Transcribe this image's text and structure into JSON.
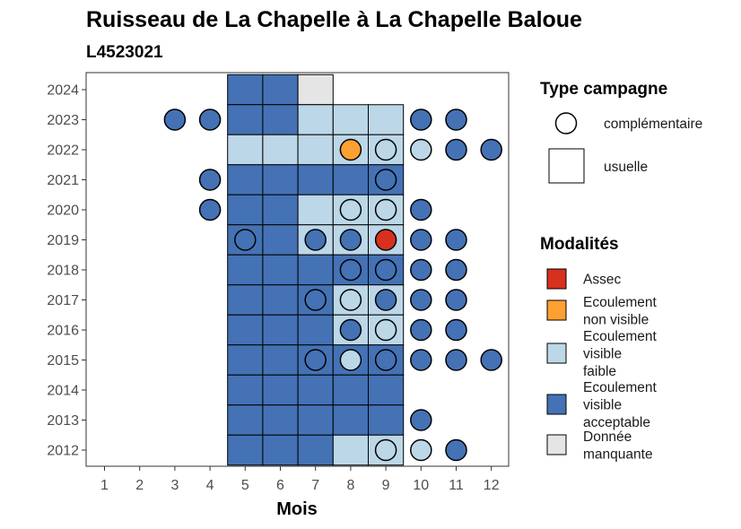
{
  "chart_data": {
    "type": "heatmap",
    "title": "Ruisseau de La Chapelle à La Chapelle Baloue",
    "subtitle": "L4523021",
    "xlabel": "Mois",
    "ylabel": "",
    "x_categories": [
      "1",
      "2",
      "3",
      "4",
      "5",
      "6",
      "7",
      "8",
      "9",
      "10",
      "11",
      "12"
    ],
    "y_categories": [
      "2012",
      "2013",
      "2014",
      "2015",
      "2016",
      "2017",
      "2018",
      "2019",
      "2020",
      "2021",
      "2022",
      "2023",
      "2024"
    ],
    "colors": {
      "Assec": "#d7301f",
      "Ecoulement non visible": "#fda032",
      "Ecoulement visible faible": "#bcd7e8",
      "Ecoulement visible acceptable": "#4472b5",
      "Donnée manquante": "#e5e5e5"
    },
    "usuelle": [
      {
        "year": "2024",
        "month": 5,
        "mod": "Ecoulement visible acceptable"
      },
      {
        "year": "2024",
        "month": 6,
        "mod": "Ecoulement visible acceptable"
      },
      {
        "year": "2024",
        "month": 7,
        "mod": "Donnée manquante"
      },
      {
        "year": "2023",
        "month": 5,
        "mod": "Ecoulement visible acceptable"
      },
      {
        "year": "2023",
        "month": 6,
        "mod": "Ecoulement visible acceptable"
      },
      {
        "year": "2023",
        "month": 7,
        "mod": "Ecoulement visible faible"
      },
      {
        "year": "2023",
        "month": 8,
        "mod": "Ecoulement visible faible"
      },
      {
        "year": "2023",
        "month": 9,
        "mod": "Ecoulement visible faible"
      },
      {
        "year": "2022",
        "month": 5,
        "mod": "Ecoulement visible faible"
      },
      {
        "year": "2022",
        "month": 6,
        "mod": "Ecoulement visible faible"
      },
      {
        "year": "2022",
        "month": 7,
        "mod": "Ecoulement visible faible"
      },
      {
        "year": "2022",
        "month": 8,
        "mod": "Ecoulement visible faible"
      },
      {
        "year": "2022",
        "month": 9,
        "mod": "Ecoulement visible faible"
      },
      {
        "year": "2021",
        "month": 5,
        "mod": "Ecoulement visible acceptable"
      },
      {
        "year": "2021",
        "month": 6,
        "mod": "Ecoulement visible acceptable"
      },
      {
        "year": "2021",
        "month": 7,
        "mod": "Ecoulement visible acceptable"
      },
      {
        "year": "2021",
        "month": 8,
        "mod": "Ecoulement visible acceptable"
      },
      {
        "year": "2021",
        "month": 9,
        "mod": "Ecoulement visible acceptable"
      },
      {
        "year": "2020",
        "month": 5,
        "mod": "Ecoulement visible acceptable"
      },
      {
        "year": "2020",
        "month": 6,
        "mod": "Ecoulement visible acceptable"
      },
      {
        "year": "2020",
        "month": 7,
        "mod": "Ecoulement visible faible"
      },
      {
        "year": "2020",
        "month": 8,
        "mod": "Ecoulement visible faible"
      },
      {
        "year": "2020",
        "month": 9,
        "mod": "Ecoulement visible faible"
      },
      {
        "year": "2019",
        "month": 5,
        "mod": "Ecoulement visible acceptable"
      },
      {
        "year": "2019",
        "month": 6,
        "mod": "Ecoulement visible acceptable"
      },
      {
        "year": "2019",
        "month": 7,
        "mod": "Ecoulement visible faible"
      },
      {
        "year": "2019",
        "month": 8,
        "mod": "Ecoulement visible faible"
      },
      {
        "year": "2019",
        "month": 9,
        "mod": "Ecoulement visible faible"
      },
      {
        "year": "2018",
        "month": 5,
        "mod": "Ecoulement visible acceptable"
      },
      {
        "year": "2018",
        "month": 6,
        "mod": "Ecoulement visible acceptable"
      },
      {
        "year": "2018",
        "month": 7,
        "mod": "Ecoulement visible acceptable"
      },
      {
        "year": "2018",
        "month": 8,
        "mod": "Ecoulement visible acceptable"
      },
      {
        "year": "2018",
        "month": 9,
        "mod": "Ecoulement visible acceptable"
      },
      {
        "year": "2017",
        "month": 5,
        "mod": "Ecoulement visible acceptable"
      },
      {
        "year": "2017",
        "month": 6,
        "mod": "Ecoulement visible acceptable"
      },
      {
        "year": "2017",
        "month": 7,
        "mod": "Ecoulement visible acceptable"
      },
      {
        "year": "2017",
        "month": 8,
        "mod": "Ecoulement visible faible"
      },
      {
        "year": "2017",
        "month": 9,
        "mod": "Ecoulement visible faible"
      },
      {
        "year": "2016",
        "month": 5,
        "mod": "Ecoulement visible acceptable"
      },
      {
        "year": "2016",
        "month": 6,
        "mod": "Ecoulement visible acceptable"
      },
      {
        "year": "2016",
        "month": 7,
        "mod": "Ecoulement visible acceptable"
      },
      {
        "year": "2016",
        "month": 8,
        "mod": "Ecoulement visible faible"
      },
      {
        "year": "2016",
        "month": 9,
        "mod": "Ecoulement visible faible"
      },
      {
        "year": "2015",
        "month": 5,
        "mod": "Ecoulement visible acceptable"
      },
      {
        "year": "2015",
        "month": 6,
        "mod": "Ecoulement visible acceptable"
      },
      {
        "year": "2015",
        "month": 7,
        "mod": "Ecoulement visible acceptable"
      },
      {
        "year": "2015",
        "month": 8,
        "mod": "Ecoulement visible acceptable"
      },
      {
        "year": "2015",
        "month": 9,
        "mod": "Ecoulement visible acceptable"
      },
      {
        "year": "2014",
        "month": 5,
        "mod": "Ecoulement visible acceptable"
      },
      {
        "year": "2014",
        "month": 6,
        "mod": "Ecoulement visible acceptable"
      },
      {
        "year": "2014",
        "month": 7,
        "mod": "Ecoulement visible acceptable"
      },
      {
        "year": "2014",
        "month": 8,
        "mod": "Ecoulement visible acceptable"
      },
      {
        "year": "2014",
        "month": 9,
        "mod": "Ecoulement visible acceptable"
      },
      {
        "year": "2013",
        "month": 5,
        "mod": "Ecoulement visible acceptable"
      },
      {
        "year": "2013",
        "month": 6,
        "mod": "Ecoulement visible acceptable"
      },
      {
        "year": "2013",
        "month": 7,
        "mod": "Ecoulement visible acceptable"
      },
      {
        "year": "2013",
        "month": 8,
        "mod": "Ecoulement visible acceptable"
      },
      {
        "year": "2013",
        "month": 9,
        "mod": "Ecoulement visible acceptable"
      },
      {
        "year": "2012",
        "month": 5,
        "mod": "Ecoulement visible acceptable"
      },
      {
        "year": "2012",
        "month": 6,
        "mod": "Ecoulement visible acceptable"
      },
      {
        "year": "2012",
        "month": 7,
        "mod": "Ecoulement visible acceptable"
      },
      {
        "year": "2012",
        "month": 8,
        "mod": "Ecoulement visible faible"
      },
      {
        "year": "2012",
        "month": 9,
        "mod": "Ecoulement visible faible"
      }
    ],
    "complementaire": [
      {
        "year": "2023",
        "month": 3,
        "mod": "Ecoulement visible acceptable"
      },
      {
        "year": "2023",
        "month": 4,
        "mod": "Ecoulement visible acceptable"
      },
      {
        "year": "2023",
        "month": 10,
        "mod": "Ecoulement visible acceptable"
      },
      {
        "year": "2023",
        "month": 11,
        "mod": "Ecoulement visible acceptable"
      },
      {
        "year": "2022",
        "month": 8,
        "mod": "Ecoulement non visible"
      },
      {
        "year": "2022",
        "month": 9,
        "mod": "Ecoulement visible faible"
      },
      {
        "year": "2022",
        "month": 10,
        "mod": "Ecoulement visible faible"
      },
      {
        "year": "2022",
        "month": 11,
        "mod": "Ecoulement visible acceptable"
      },
      {
        "year": "2022",
        "month": 12,
        "mod": "Ecoulement visible acceptable"
      },
      {
        "year": "2021",
        "month": 4,
        "mod": "Ecoulement visible acceptable"
      },
      {
        "year": "2021",
        "month": 9,
        "mod": "Ecoulement visible acceptable"
      },
      {
        "year": "2020",
        "month": 4,
        "mod": "Ecoulement visible acceptable"
      },
      {
        "year": "2020",
        "month": 8,
        "mod": "Ecoulement visible faible"
      },
      {
        "year": "2020",
        "month": 9,
        "mod": "Ecoulement visible faible"
      },
      {
        "year": "2020",
        "month": 10,
        "mod": "Ecoulement visible acceptable"
      },
      {
        "year": "2019",
        "month": 5,
        "mod": "Ecoulement visible acceptable"
      },
      {
        "year": "2019",
        "month": 7,
        "mod": "Ecoulement visible acceptable"
      },
      {
        "year": "2019",
        "month": 8,
        "mod": "Ecoulement visible acceptable"
      },
      {
        "year": "2019",
        "month": 9,
        "mod": "Assec"
      },
      {
        "year": "2019",
        "month": 10,
        "mod": "Ecoulement visible acceptable"
      },
      {
        "year": "2019",
        "month": 11,
        "mod": "Ecoulement visible acceptable"
      },
      {
        "year": "2018",
        "month": 8,
        "mod": "Ecoulement visible acceptable"
      },
      {
        "year": "2018",
        "month": 9,
        "mod": "Ecoulement visible acceptable"
      },
      {
        "year": "2018",
        "month": 10,
        "mod": "Ecoulement visible acceptable"
      },
      {
        "year": "2018",
        "month": 11,
        "mod": "Ecoulement visible acceptable"
      },
      {
        "year": "2017",
        "month": 7,
        "mod": "Ecoulement visible acceptable"
      },
      {
        "year": "2017",
        "month": 8,
        "mod": "Ecoulement visible faible"
      },
      {
        "year": "2017",
        "month": 9,
        "mod": "Ecoulement visible acceptable"
      },
      {
        "year": "2017",
        "month": 10,
        "mod": "Ecoulement visible acceptable"
      },
      {
        "year": "2017",
        "month": 11,
        "mod": "Ecoulement visible acceptable"
      },
      {
        "year": "2016",
        "month": 8,
        "mod": "Ecoulement visible acceptable"
      },
      {
        "year": "2016",
        "month": 9,
        "mod": "Ecoulement visible faible"
      },
      {
        "year": "2016",
        "month": 10,
        "mod": "Ecoulement visible acceptable"
      },
      {
        "year": "2016",
        "month": 11,
        "mod": "Ecoulement visible acceptable"
      },
      {
        "year": "2015",
        "month": 7,
        "mod": "Ecoulement visible acceptable"
      },
      {
        "year": "2015",
        "month": 8,
        "mod": "Ecoulement visible faible"
      },
      {
        "year": "2015",
        "month": 9,
        "mod": "Ecoulement visible acceptable"
      },
      {
        "year": "2015",
        "month": 10,
        "mod": "Ecoulement visible acceptable"
      },
      {
        "year": "2015",
        "month": 11,
        "mod": "Ecoulement visible acceptable"
      },
      {
        "year": "2015",
        "month": 12,
        "mod": "Ecoulement visible acceptable"
      },
      {
        "year": "2013",
        "month": 10,
        "mod": "Ecoulement visible acceptable"
      },
      {
        "year": "2012",
        "month": 9,
        "mod": "Ecoulement visible faible"
      },
      {
        "year": "2012",
        "month": 10,
        "mod": "Ecoulement visible faible"
      },
      {
        "year": "2012",
        "month": 11,
        "mod": "Ecoulement visible acceptable"
      }
    ],
    "legend_campagne": {
      "title": "Type campagne",
      "items": [
        "complémentaire",
        "usuelle"
      ]
    },
    "legend_modalites": {
      "title": "Modalités",
      "items": [
        {
          "key": "Assec",
          "lines": [
            "Assec"
          ]
        },
        {
          "key": "Ecoulement non visible",
          "lines": [
            "Ecoulement",
            "non visible"
          ]
        },
        {
          "key": "Ecoulement visible faible",
          "lines": [
            "Ecoulement",
            "visible",
            "faible"
          ]
        },
        {
          "key": "Ecoulement visible acceptable",
          "lines": [
            "Ecoulement",
            "visible",
            "acceptable"
          ]
        },
        {
          "key": "Donnée manquante",
          "lines": [
            "Donnée",
            "manquante"
          ]
        }
      ]
    },
    "legend_position": "right"
  }
}
